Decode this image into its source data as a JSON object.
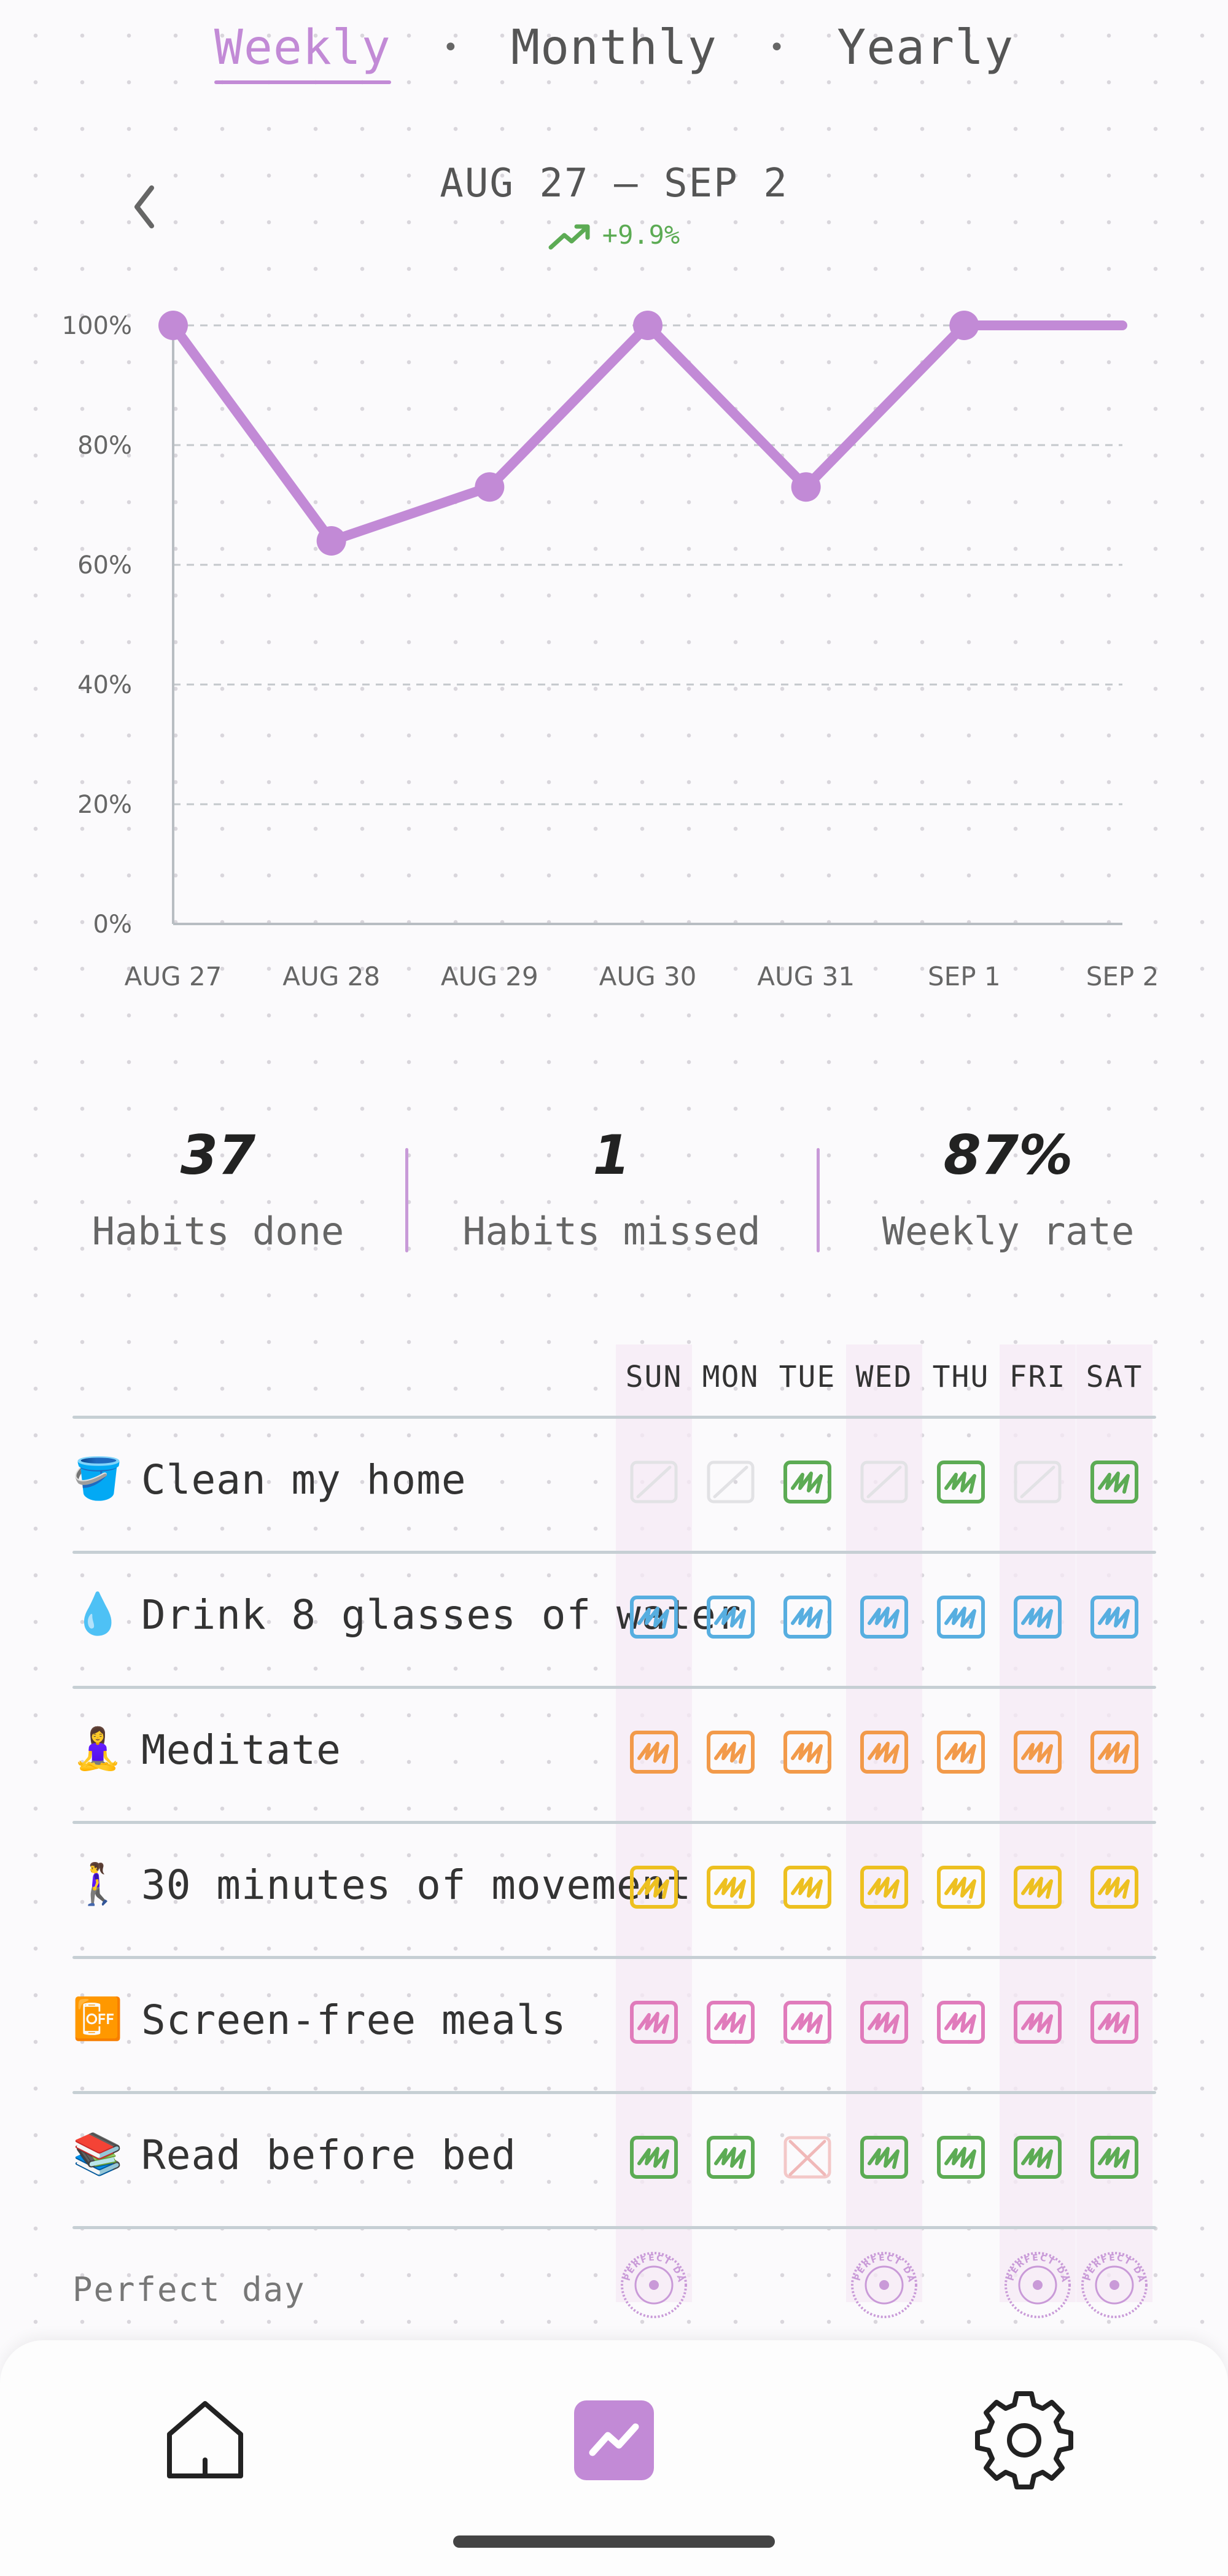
{
  "tabs": {
    "weekly": "Weekly",
    "monthly": "Monthly",
    "yearly": "Yearly",
    "separator": "•"
  },
  "header": {
    "range": "AUG 27 – SEP 2",
    "change": "+9.9%"
  },
  "colors": {
    "accent": "#c28ad6",
    "positive": "#5cab54"
  },
  "chart_data": {
    "type": "line",
    "x": [
      "AUG 27",
      "AUG 28",
      "AUG 29",
      "AUG 30",
      "AUG 31",
      "SEP 1",
      "SEP 2"
    ],
    "y": [
      100,
      64,
      73,
      100,
      73,
      100,
      100
    ],
    "y_tick_labels": [
      "0%",
      "20%",
      "40%",
      "60%",
      "80%",
      "100%"
    ],
    "ylim": [
      0,
      100
    ],
    "grid": "horizontal dashed",
    "series_color": "#c28ad6"
  },
  "stats": [
    {
      "value": "37",
      "label": "Habits done"
    },
    {
      "value": "1",
      "label": "Habits missed"
    },
    {
      "value": "87%",
      "label": "Weekly rate"
    }
  ],
  "days": [
    "SUN",
    "MON",
    "TUE",
    "WED",
    "THU",
    "FRI",
    "SAT"
  ],
  "habits": [
    {
      "emoji": "🪣",
      "name": "Clean my home",
      "color": "#5cab54",
      "status": [
        "empty",
        "empty",
        "done",
        "empty",
        "done",
        "empty",
        "done"
      ]
    },
    {
      "emoji": "💧",
      "name": "Drink 8 glasses of water",
      "color": "#57aee0",
      "status": [
        "done",
        "done",
        "done",
        "done",
        "done",
        "done",
        "done"
      ]
    },
    {
      "emoji": "🧘‍♀️",
      "name": "Meditate",
      "color": "#f29a4a",
      "status": [
        "done",
        "done",
        "done",
        "done",
        "done",
        "done",
        "done"
      ]
    },
    {
      "emoji": "🚶‍♀️",
      "name": "30 minutes of movement",
      "color": "#edc020",
      "status": [
        "done",
        "done",
        "done",
        "done",
        "done",
        "done",
        "done"
      ]
    },
    {
      "emoji": "📴",
      "name": "Screen-free meals",
      "color": "#e07bbb",
      "status": [
        "done",
        "done",
        "done",
        "done",
        "done",
        "done",
        "done"
      ]
    },
    {
      "emoji": "📚",
      "name": "Read before bed",
      "color": "#5cab54",
      "status": [
        "done",
        "done",
        "missed",
        "done",
        "done",
        "done",
        "done"
      ]
    }
  ],
  "perfect_day": {
    "label": "Perfect day",
    "days": [
      true,
      false,
      false,
      true,
      false,
      true,
      true
    ],
    "stamp_text": "PERFECT DAY"
  },
  "nav": {
    "home_icon": "home-icon",
    "stats_icon": "trend-icon",
    "settings_icon": "gear-icon"
  }
}
